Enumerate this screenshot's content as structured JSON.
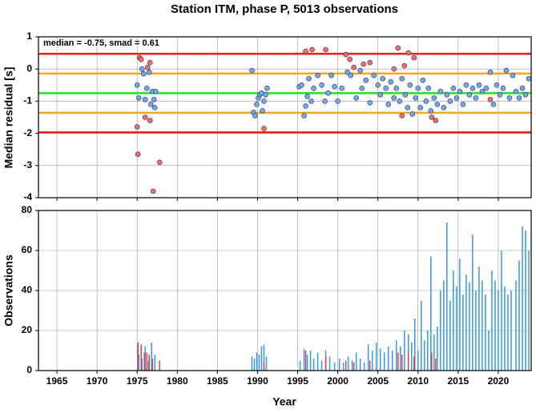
{
  "chart_data": [
    {
      "type": "scatter",
      "title": "Station ITM, phase P, 5013 observations",
      "ylabel": "Median residual [s]",
      "annotation": "median = -0.75, smad = 0.61",
      "xlim": [
        1962.7,
        2024.1
      ],
      "ylim": [
        -4,
        1
      ],
      "xticks": [
        1965,
        1970,
        1975,
        1980,
        1985,
        1990,
        1995,
        2000,
        2005,
        2010,
        2015,
        2020
      ],
      "yticks": [
        -4,
        -3,
        -2,
        -1,
        0,
        1
      ],
      "grid": true,
      "reference_lines": [
        {
          "value": 0.47,
          "color": "#e8201c"
        },
        {
          "value": -0.14,
          "color": "#f5a623"
        },
        {
          "value": -0.75,
          "color": "#22e022"
        },
        {
          "value": -1.36,
          "color": "#f5a623"
        },
        {
          "value": -1.97,
          "color": "#e8201c"
        }
      ],
      "series": [
        {
          "color": "#6fa8ef",
          "x": [
            1975.0,
            1975.2,
            1975.6,
            1975.8,
            1976.0,
            1976.2,
            1976.5,
            1976.7,
            1976.9,
            1977.2,
            1977.3,
            1977.1,
            1989.3,
            1989.5,
            1989.7,
            1989.9,
            1990.1,
            1990.3,
            1990.5,
            1990.8,
            1991.0,
            1991.2,
            1990.6,
            1995.2,
            1995.5,
            1995.8,
            1996.0,
            1996.2,
            1996.4,
            1996.7,
            1997.0,
            1997.5,
            1998.0,
            1998.4,
            1998.8,
            1999.2,
            1999.6,
            2000.0,
            2000.5,
            2001.2,
            2001.6,
            2002.3,
            2002.8,
            2003.0,
            2003.5,
            2004.0,
            2004.5,
            2005.0,
            2005.3,
            2005.6,
            2006.0,
            2006.3,
            2006.6,
            2007.0,
            2007.3,
            2007.7,
            2008.0,
            2008.4,
            2008.7,
            2009.0,
            2009.3,
            2009.7,
            2010.0,
            2010.3,
            2010.6,
            2011.0,
            2011.3,
            2011.6,
            2012.0,
            2012.4,
            2012.8,
            2013.2,
            2013.6,
            2014.0,
            2014.4,
            2014.8,
            2015.2,
            2015.6,
            2016.0,
            2016.4,
            2016.8,
            2017.2,
            2017.6,
            2018.0,
            2018.5,
            2019.0,
            2019.4,
            2019.8,
            2020.2,
            2020.6,
            2021.0,
            2021.4,
            2021.8,
            2022.2,
            2022.6,
            2023.0,
            2023.4,
            2023.8
          ],
          "values": [
            -0.5,
            -0.9,
            0.0,
            -0.15,
            -0.95,
            -0.6,
            -0.1,
            -1.1,
            -0.7,
            -1.2,
            -0.7,
            -0.95,
            -0.05,
            -1.35,
            -1.45,
            -1.1,
            -0.9,
            -0.8,
            -0.75,
            -1.0,
            -0.8,
            -0.6,
            -1.3,
            -0.55,
            -0.5,
            -1.45,
            -1.15,
            -0.85,
            -0.3,
            -1.0,
            -0.6,
            -0.2,
            -0.5,
            -1.0,
            -0.75,
            -0.2,
            -0.55,
            -1.0,
            -0.6,
            -0.1,
            -0.2,
            -0.9,
            -0.05,
            -0.6,
            -0.35,
            -1.05,
            -0.2,
            -0.5,
            -0.8,
            -0.3,
            -0.6,
            -1.1,
            -0.4,
            -0.9,
            -0.6,
            -1.0,
            -0.3,
            -0.8,
            -1.2,
            -0.5,
            -1.4,
            -0.9,
            -0.6,
            -1.2,
            -0.35,
            -1.0,
            -0.6,
            -1.3,
            -0.9,
            -1.1,
            -0.7,
            -1.2,
            -0.8,
            -1.0,
            -0.6,
            -0.9,
            -0.7,
            -1.1,
            -0.5,
            -0.8,
            -0.6,
            -0.9,
            -0.5,
            -0.7,
            -0.6,
            -0.1,
            -1.1,
            -0.5,
            -0.8,
            -0.6,
            -0.05,
            -0.9,
            -0.2,
            -0.7,
            -0.9,
            -0.6,
            -0.8,
            -0.3
          ]
        },
        {
          "color": "#f26d63",
          "x": [
            1975.0,
            1975.1,
            1975.3,
            1975.5,
            1976.0,
            1976.3,
            1976.6,
            1976.6,
            1977.0,
            1977.8,
            1990.8,
            1996.0,
            1996.8,
            1998.5,
            2001.0,
            2001.5,
            2002.0,
            2003.2,
            2004.0,
            2007.0,
            2007.5,
            2008.0,
            2008.3,
            2008.8,
            2009.5,
            2011.7,
            2012.2,
            2019.0
          ],
          "values": [
            -1.8,
            -2.65,
            0.35,
            0.3,
            -1.5,
            0.05,
            0.2,
            -1.6,
            -3.8,
            -2.9,
            -1.85,
            0.55,
            0.6,
            0.6,
            0.45,
            0.3,
            0.05,
            0.15,
            0.2,
            0.0,
            0.65,
            -1.45,
            0.1,
            0.5,
            0.35,
            -1.5,
            -1.6,
            -0.95
          ]
        }
      ]
    },
    {
      "type": "bar",
      "ylabel": "Observations",
      "xlabel": "Year",
      "xlim": [
        1962.7,
        2024.1
      ],
      "ylim": [
        0,
        80
      ],
      "xticks": [
        1965,
        1970,
        1975,
        1980,
        1985,
        1990,
        1995,
        2000,
        2005,
        2010,
        2015,
        2020
      ],
      "yticks": [
        0,
        20,
        40,
        60,
        80
      ],
      "grid": true,
      "series": [
        {
          "color": "#3399ee",
          "x": [
            1975.2,
            1975.6,
            1976.0,
            1976.4,
            1976.8,
            1977.2,
            1989.3,
            1989.6,
            1989.9,
            1990.2,
            1990.5,
            1990.8,
            1991.1,
            1995.3,
            1995.8,
            1996.2,
            1996.6,
            1997.0,
            1997.5,
            1998.0,
            1998.5,
            1999.0,
            1999.6,
            2000.2,
            2000.7,
            2001.3,
            2001.8,
            2002.3,
            2002.8,
            2003.3,
            2003.8,
            2004.3,
            2004.8,
            2005.3,
            2005.8,
            2006.3,
            2006.8,
            2007.3,
            2007.8,
            2008.3,
            2008.8,
            2009.2,
            2009.6,
            2010.0,
            2010.4,
            2010.8,
            2011.2,
            2011.6,
            2012.0,
            2012.4,
            2012.8,
            2013.2,
            2013.6,
            2014.0,
            2014.4,
            2014.8,
            2015.2,
            2015.6,
            2016.0,
            2016.4,
            2016.8,
            2017.2,
            2017.6,
            2018.0,
            2018.4,
            2018.8,
            2019.2,
            2019.6,
            2020.0,
            2020.4,
            2020.8,
            2021.2,
            2021.6,
            2022.2,
            2022.6,
            2023.0,
            2023.4,
            2023.8
          ],
          "values": [
            8,
            6,
            12,
            5,
            14,
            8,
            7,
            6,
            9,
            8,
            12,
            13,
            7,
            5,
            11,
            8,
            10,
            6,
            9,
            5,
            10,
            7,
            4,
            6,
            4,
            7,
            5,
            9,
            6,
            4,
            13,
            10,
            14,
            11,
            9,
            12,
            10,
            15,
            12,
            20,
            18,
            14,
            26,
            10,
            35,
            15,
            20,
            57,
            18,
            22,
            40,
            45,
            74,
            35,
            50,
            42,
            56,
            38,
            48,
            44,
            68,
            40,
            52,
            45,
            38,
            20,
            50,
            45,
            40,
            60,
            42,
            38,
            40,
            45,
            55,
            72,
            70,
            60
          ]
        },
        {
          "color": "#d9434a",
          "x": [
            1975.1,
            1975.5,
            1975.9,
            1976.2,
            1976.5,
            1976.9,
            1977.8,
            1990.8,
            1996.0,
            1998.5,
            2001.0,
            2002.0,
            2004.0,
            2007.5,
            2008.0,
            2008.8,
            2009.5,
            2011.7,
            2012.2
          ],
          "values": [
            14,
            13,
            9,
            9,
            8,
            6,
            5,
            4,
            10,
            7,
            5,
            4,
            5,
            9,
            8,
            10,
            7,
            9,
            6
          ]
        }
      ]
    }
  ]
}
